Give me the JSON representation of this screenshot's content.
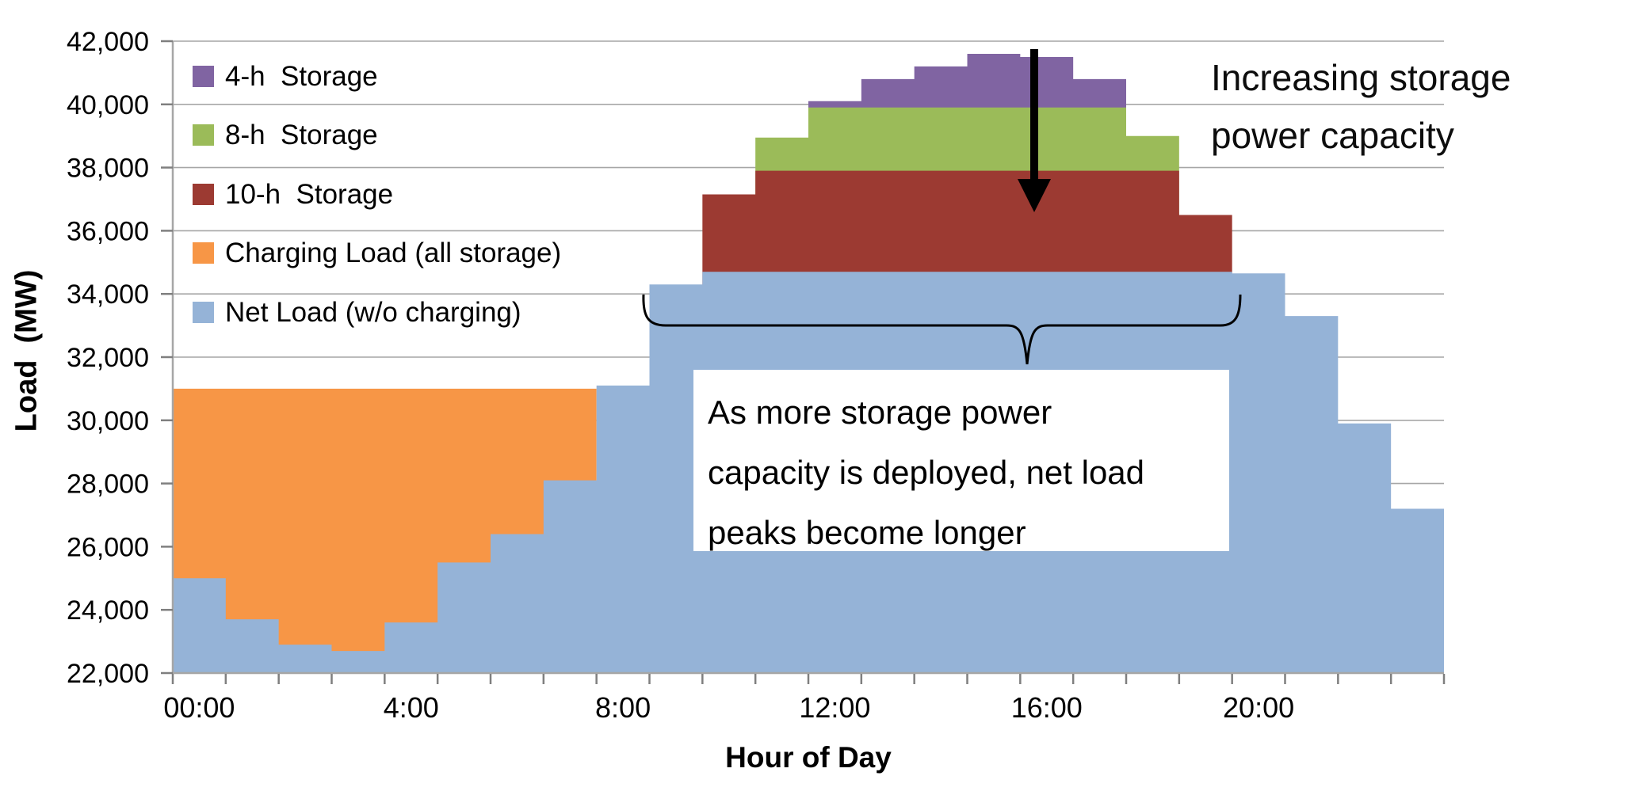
{
  "figure": {
    "y_axis": {
      "title": "Load  (MW)",
      "tick_labels": [
        "22,000",
        "24,000",
        "26,000",
        "28,000",
        "30,000",
        "32,000",
        "34,000",
        "36,000",
        "38,000",
        "40,000",
        "42,000"
      ]
    },
    "x_axis": {
      "title": "Hour of Day",
      "tick_labels": [
        "00:00",
        "4:00",
        "8:00",
        "12:00",
        "16:00",
        "20:00"
      ],
      "label_hours": [
        0,
        4,
        8,
        12,
        16,
        20
      ]
    },
    "legend": [
      {
        "label": "4-h  Storage",
        "color": "#8064A2"
      },
      {
        "label": "8-h  Storage",
        "color": "#9BBB59"
      },
      {
        "label": "10-h  Storage",
        "color": "#9C3A32"
      },
      {
        "label": "Charging Load (all storage)",
        "color": "#F79646"
      },
      {
        "label": "Net Load (w/o charging)",
        "color": "#95B3D7"
      }
    ],
    "annotations": {
      "top_right": "Increasing storage\npower capacity",
      "box_text": "As more storage power\ncapacity is deployed, net load\npeaks become longer"
    }
  },
  "chart_data": {
    "type": "area",
    "variant": "stacked step areas (hourly)",
    "title": "",
    "xlabel": "Hour of Day",
    "ylabel": "Load  (MW)",
    "x_unit": "hour of day (0-23)",
    "y_unit": "MW",
    "xlim": [
      0,
      24
    ],
    "ylim": [
      22000,
      42000
    ],
    "gridlines": "horizontal every 2,000 MW",
    "legend_position": "top-left inside plot",
    "values_are": "stack-top level in MW read off the y-axis for each hourly step",
    "series": [
      {
        "name": "4-h Storage",
        "color": "#8064A2",
        "start_hour": 12,
        "stack_top_mw": [
          40100,
          40800,
          41200,
          41600,
          41500,
          40800
        ]
      },
      {
        "name": "8-h Storage",
        "color": "#9BBB59",
        "start_hour": 11,
        "stack_top_mw": [
          38950,
          39900,
          39900,
          39900,
          39900,
          39900,
          39900,
          39000
        ]
      },
      {
        "name": "10-h Storage",
        "color": "#9C3A32",
        "start_hour": 10,
        "stack_top_mw": [
          37150,
          37900,
          37900,
          37900,
          37900,
          37900,
          37900,
          37900,
          37900,
          36500
        ]
      },
      {
        "name": "Charging Load (all storage)",
        "color": "#F79646",
        "start_hour": 0,
        "stack_top_mw": [
          31000,
          31000,
          31000,
          31000,
          31000,
          31000,
          31000,
          31000
        ]
      },
      {
        "name": "Net Load (w/o charging)",
        "color": "#95B3D7",
        "start_hour": 0,
        "stack_top_mw": [
          25000,
          23700,
          22900,
          22700,
          23600,
          25500,
          26400,
          28100,
          31100,
          34300,
          34700,
          34700,
          34700,
          34700,
          34700,
          34700,
          34700,
          34700,
          34700,
          34700,
          34650,
          33300,
          29900,
          27200
        ]
      }
    ]
  }
}
